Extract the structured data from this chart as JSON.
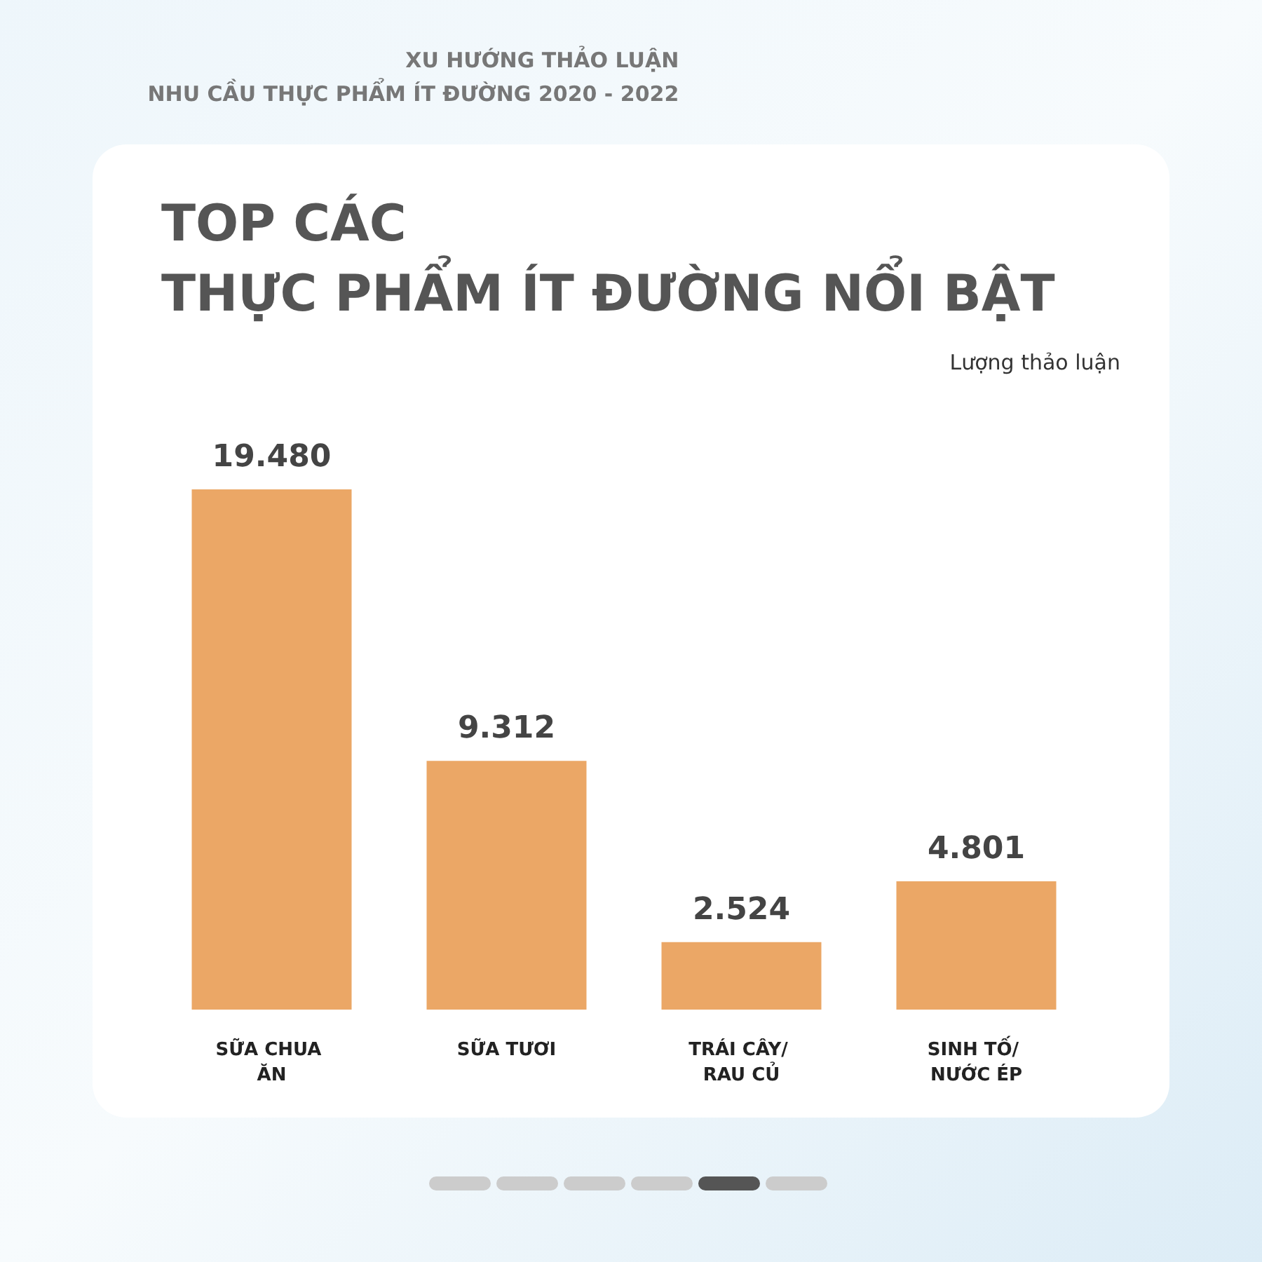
{
  "chart_data": {
    "type": "bar",
    "title": "TOP CÁC\nTHỰC PHẨM ÍT ĐƯỜNG NỔI BẬT",
    "subtitle": "XU HƯỚNG THẢO LUẬN\nNHU CẦU THỰC PHẨM ÍT ĐƯỜNG 2020 - 2022",
    "annotations": [
      "Lượng thảo luận"
    ],
    "categories": [
      "SỮA CHUA ĂN",
      "SỮA TƯƠI",
      "TRÁI CÂY/ RAU CỦ",
      "SINH TỐ/ NƯỚC ÉP"
    ],
    "values": [
      19480,
      9312,
      2524,
      4801
    ],
    "value_labels": [
      "19.480",
      "9.312",
      "2.524",
      "4.801"
    ],
    "color": "#eba766"
  }
}
